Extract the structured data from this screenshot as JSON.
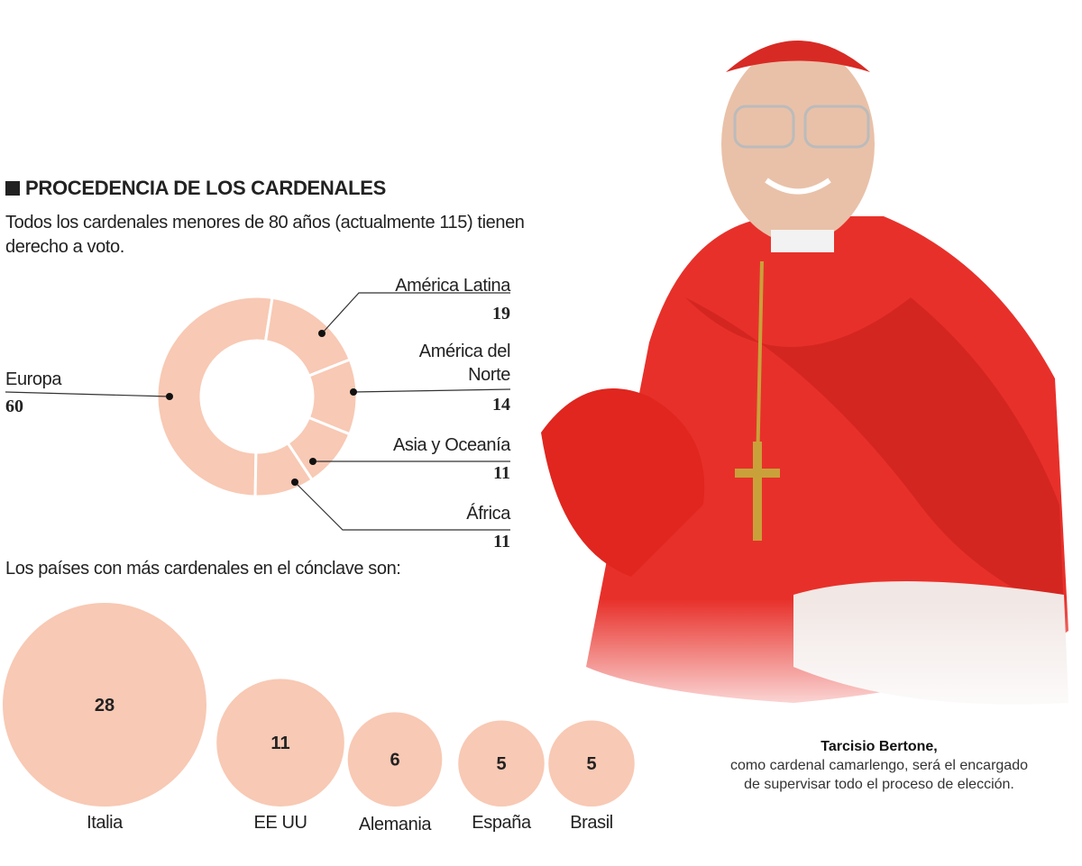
{
  "title": "PROCEDENCIA DE LOS CARDENALES",
  "subtitle": "Todos los cardenales menores de 80 años (actualmente 115) tienen derecho a voto.",
  "question": "Los países con más cardenales en el cónclave son:",
  "caption": {
    "name": "Tarcisio Bertone,",
    "text": "como cardenal camarlengo, será el encargado de supervisar todo el proceso de elección."
  },
  "colors": {
    "slice": "#f8c9b4",
    "text": "#222222",
    "robe": "#e8302a"
  },
  "chart_data": [
    {
      "type": "pie",
      "donut": true,
      "total": 115,
      "categories": [
        "Europa",
        "América Latina",
        "América del Norte",
        "Asia y Oceanía",
        "África"
      ],
      "values": [
        60,
        19,
        14,
        11,
        11
      ]
    },
    {
      "type": "bubble",
      "categories": [
        "Italia",
        "EE UU",
        "Alemania",
        "España",
        "Brasil"
      ],
      "values": [
        28,
        11,
        6,
        5,
        5
      ]
    }
  ]
}
